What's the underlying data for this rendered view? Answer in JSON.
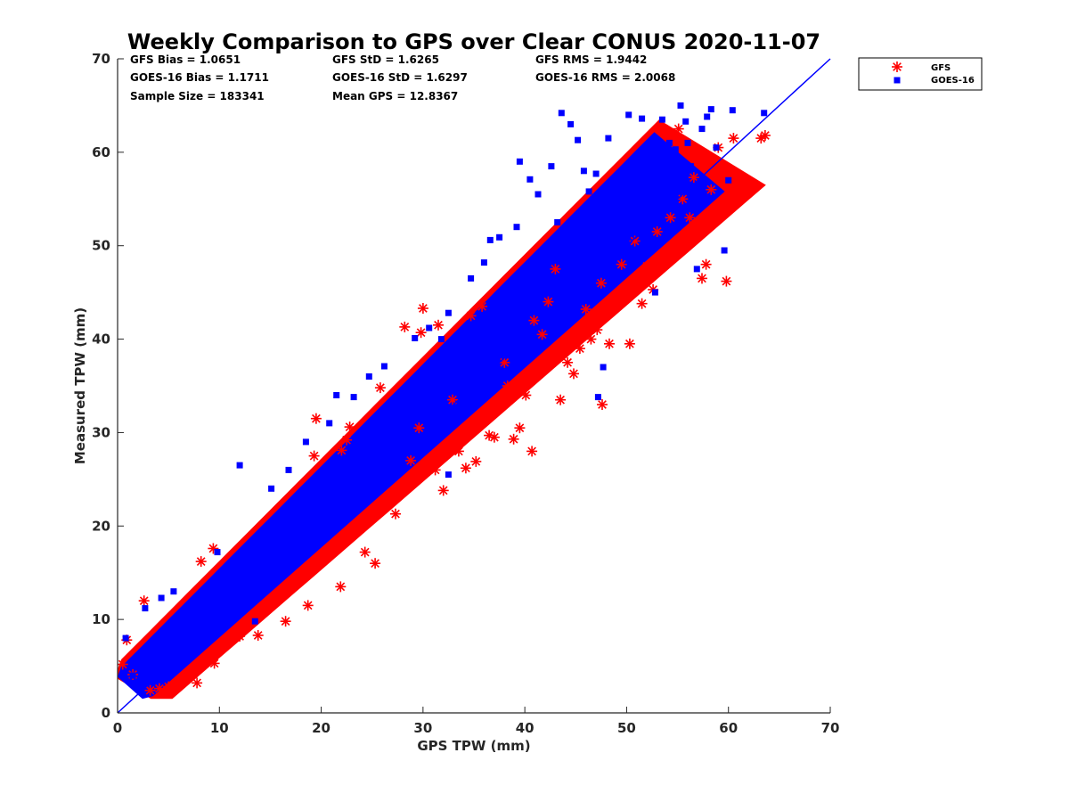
{
  "chart_data": {
    "type": "scatter",
    "title": "Weekly Comparison to GPS over Clear CONUS 2020-11-07",
    "xlabel": "GPS TPW (mm)",
    "ylabel": "Measured TPW (mm)",
    "xlim": [
      0,
      70
    ],
    "ylim": [
      0,
      70
    ],
    "xticks": [
      "0",
      "10",
      "20",
      "30",
      "40",
      "50",
      "60",
      "70"
    ],
    "yticks": [
      "0",
      "10",
      "20",
      "30",
      "40",
      "50",
      "60",
      "70"
    ],
    "grid": false,
    "legend_position": "outside-top-right",
    "stats": [
      [
        "GFS Bias = 1.0651",
        "GFS StD = 1.6265",
        "GFS RMS = 1.9442"
      ],
      [
        "GOES-16 Bias = 1.1711",
        "GOES-16 StD = 1.6297",
        "GOES-16 RMS = 2.0068"
      ],
      [
        "Sample Size = 183341",
        "Mean GPS = 12.8367",
        ""
      ]
    ],
    "reference_line": {
      "x": [
        0,
        70
      ],
      "y": [
        0,
        70
      ],
      "color": "#0000ff"
    },
    "series": [
      {
        "name": "GFS",
        "marker": "asterisk",
        "color": "#ff0000",
        "points": [
          [
            0.5,
            5.2
          ],
          [
            0.9,
            7.8
          ],
          [
            1.5,
            4.1
          ],
          [
            2.6,
            12.0
          ],
          [
            3.2,
            2.4
          ],
          [
            4.1,
            2.6
          ],
          [
            5.0,
            2.8
          ],
          [
            6.3,
            3.3
          ],
          [
            7.8,
            3.2
          ],
          [
            9.5,
            5.3
          ],
          [
            8.2,
            16.2
          ],
          [
            9.4,
            17.6
          ],
          [
            12.0,
            8.2
          ],
          [
            13.8,
            8.3
          ],
          [
            16.5,
            9.8
          ],
          [
            18.7,
            11.5
          ],
          [
            19.3,
            27.5
          ],
          [
            19.5,
            31.5
          ],
          [
            21.9,
            13.5
          ],
          [
            22.0,
            28.1
          ],
          [
            22.5,
            29.2
          ],
          [
            22.8,
            30.6
          ],
          [
            24.3,
            17.2
          ],
          [
            25.3,
            16.0
          ],
          [
            25.8,
            34.8
          ],
          [
            27.3,
            21.3
          ],
          [
            28.2,
            41.3
          ],
          [
            28.8,
            27.0
          ],
          [
            29.6,
            30.5
          ],
          [
            29.8,
            40.7
          ],
          [
            30.0,
            43.3
          ],
          [
            31.5,
            41.5
          ],
          [
            31.2,
            26.0
          ],
          [
            32.0,
            23.8
          ],
          [
            32.9,
            33.5
          ],
          [
            33.5,
            28.0
          ],
          [
            34.2,
            26.2
          ],
          [
            34.7,
            42.5
          ],
          [
            35.2,
            26.9
          ],
          [
            35.8,
            43.5
          ],
          [
            36.5,
            29.7
          ],
          [
            37.0,
            29.5
          ],
          [
            38.0,
            37.5
          ],
          [
            38.3,
            35.0
          ],
          [
            38.9,
            29.3
          ],
          [
            39.5,
            30.5
          ],
          [
            40.1,
            34.0
          ],
          [
            40.7,
            28.0
          ],
          [
            40.9,
            42.0
          ],
          [
            41.7,
            40.5
          ],
          [
            42.3,
            44.0
          ],
          [
            43.0,
            47.5
          ],
          [
            43.5,
            33.5
          ],
          [
            44.2,
            37.5
          ],
          [
            44.8,
            36.3
          ],
          [
            45.4,
            39.0
          ],
          [
            46.0,
            43.2
          ],
          [
            46.5,
            40.0
          ],
          [
            47.1,
            41.0
          ],
          [
            47.6,
            33.0
          ],
          [
            47.5,
            46.0
          ],
          [
            48.3,
            39.5
          ],
          [
            49.0,
            44.0
          ],
          [
            49.5,
            48.0
          ],
          [
            50.3,
            39.5
          ],
          [
            50.8,
            50.5
          ],
          [
            51.5,
            43.8
          ],
          [
            52.0,
            47.8
          ],
          [
            52.6,
            45.3
          ],
          [
            53.0,
            51.5
          ],
          [
            53.6,
            49.0
          ],
          [
            54.3,
            53.0
          ],
          [
            54.6,
            50.0
          ],
          [
            55.1,
            62.5
          ],
          [
            55.5,
            55.0
          ],
          [
            56.2,
            53.0
          ],
          [
            56.6,
            57.3
          ],
          [
            57.0,
            51.0
          ],
          [
            57.4,
            46.5
          ],
          [
            57.8,
            48.0
          ],
          [
            58.3,
            56.0
          ],
          [
            58.6,
            53.5
          ],
          [
            59.0,
            60.5
          ],
          [
            59.8,
            46.2
          ],
          [
            60.3,
            55.8
          ],
          [
            60.5,
            61.5
          ],
          [
            63.2,
            61.5
          ],
          [
            63.6,
            61.8
          ]
        ]
      },
      {
        "name": "GOES-16",
        "marker": "square",
        "color": "#0000ff",
        "points": [
          [
            0.8,
            8.0
          ],
          [
            1.5,
            4.0
          ],
          [
            2.7,
            11.2
          ],
          [
            4.3,
            12.3
          ],
          [
            5.5,
            13.0
          ],
          [
            9.8,
            17.2
          ],
          [
            12.0,
            26.5
          ],
          [
            13.5,
            9.8
          ],
          [
            15.1,
            24.0
          ],
          [
            16.8,
            26.0
          ],
          [
            18.5,
            29.0
          ],
          [
            20.8,
            31.0
          ],
          [
            21.5,
            34.0
          ],
          [
            23.2,
            33.8
          ],
          [
            24.7,
            36.0
          ],
          [
            26.2,
            37.1
          ],
          [
            28.0,
            28.8
          ],
          [
            29.2,
            40.1
          ],
          [
            30.6,
            41.2
          ],
          [
            31.8,
            40.0
          ],
          [
            32.5,
            42.8
          ],
          [
            32.5,
            25.5
          ],
          [
            34.7,
            46.5
          ],
          [
            36.0,
            48.2
          ],
          [
            36.6,
            50.6
          ],
          [
            37.5,
            50.9
          ],
          [
            39.2,
            52.0
          ],
          [
            39.5,
            59.0
          ],
          [
            40.5,
            57.1
          ],
          [
            41.3,
            55.5
          ],
          [
            41.8,
            48.8
          ],
          [
            42.6,
            58.5
          ],
          [
            43.2,
            52.5
          ],
          [
            43.6,
            64.2
          ],
          [
            44.5,
            63.0
          ],
          [
            45.2,
            61.3
          ],
          [
            45.8,
            58.0
          ],
          [
            46.3,
            55.8
          ],
          [
            47.0,
            57.7
          ],
          [
            47.2,
            33.8
          ],
          [
            47.7,
            37.0
          ],
          [
            48.2,
            61.5
          ],
          [
            48.9,
            55.0
          ],
          [
            49.6,
            49.0
          ],
          [
            50.2,
            64.0
          ],
          [
            50.9,
            52.6
          ],
          [
            51.5,
            63.6
          ],
          [
            52.3,
            55.0
          ],
          [
            52.8,
            45.0
          ],
          [
            53.5,
            63.5
          ],
          [
            54.2,
            61.0
          ],
          [
            54.8,
            60.3
          ],
          [
            55.3,
            65.0
          ],
          [
            55.8,
            63.3
          ],
          [
            56.3,
            58.5
          ],
          [
            56.9,
            47.5
          ],
          [
            57.4,
            62.5
          ],
          [
            57.9,
            63.8
          ],
          [
            58.3,
            64.6
          ],
          [
            58.8,
            60.5
          ],
          [
            59.6,
            49.5
          ],
          [
            60.0,
            57.0
          ],
          [
            60.4,
            64.5
          ],
          [
            63.5,
            64.2
          ],
          [
            3.0,
            3.5
          ],
          [
            7.5,
            10.5
          ],
          [
            11.0,
            14.5
          ],
          [
            14.0,
            18.0
          ],
          [
            17.0,
            22.0
          ],
          [
            19.0,
            24.0
          ],
          [
            22.0,
            27.0
          ],
          [
            26.0,
            31.0
          ],
          [
            29.0,
            34.0
          ],
          [
            33.0,
            38.0
          ],
          [
            36.0,
            41.0
          ],
          [
            40.0,
            44.0
          ],
          [
            44.0,
            48.0
          ],
          [
            48.0,
            52.0
          ],
          [
            52.0,
            56.0
          ],
          [
            56.0,
            61.0
          ]
        ]
      }
    ]
  }
}
